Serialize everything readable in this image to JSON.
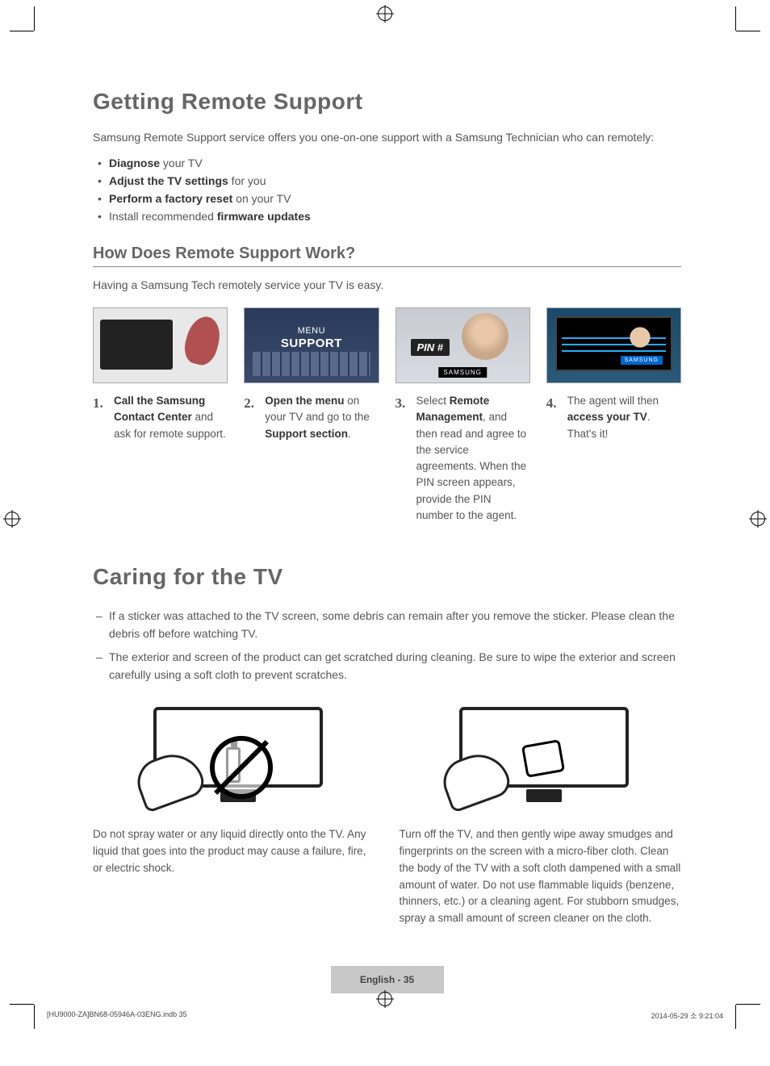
{
  "title1": "Getting Remote Support",
  "intro": "Samsung Remote Support service offers you one-on-one support with a Samsung Technician who can remotely:",
  "bullets": {
    "b1_bold": "Diagnose",
    "b1_rest": " your TV",
    "b2_bold": "Adjust the TV settings",
    "b2_rest": " for you",
    "b3_bold": "Perform a factory reset",
    "b3_rest": " on your TV",
    "b4_pre": "Install recommended ",
    "b4_bold": "firmware updates"
  },
  "subtitle": "How Does Remote Support Work?",
  "subintro": "Having a Samsung Tech remotely service your TV is easy.",
  "step2img": {
    "line1": "MENU",
    "line2": "SUPPORT"
  },
  "step3img": {
    "pin": "PIN #",
    "tag": "SAMSUNG"
  },
  "step4img": {
    "tag": "SAMSUNG"
  },
  "steps": {
    "n1": "1",
    "s1_bold": "Call the Samsung Contact Center",
    "s1_rest": " and ask for remote support.",
    "n2": "2",
    "s2_bold1": "Open the menu",
    "s2_mid": " on your TV and go to the ",
    "s2_bold2": "Support section",
    "s2_end": ".",
    "n3": "3",
    "s3_pre": "Select ",
    "s3_bold": "Remote Management",
    "s3_rest": ", and then read and agree to the service agreements. When the PIN screen appears, provide the PIN number to the agent.",
    "n4": "4",
    "s4_pre": "The agent will then ",
    "s4_bold": "access your TV",
    "s4_rest": ". That's it!"
  },
  "title2": "Caring for the TV",
  "care_bullets": {
    "c1": "If a sticker was attached to the TV screen, some debris can remain after you remove the sticker. Please clean the debris off before watching TV.",
    "c2": "The exterior and screen of the product can get scratched during cleaning. Be sure to wipe the exterior and screen carefully using a soft cloth to prevent scratches."
  },
  "care_left": "Do not spray water or any liquid directly onto the TV. Any liquid that goes into the product may cause a failure, fire, or electric shock.",
  "care_right": "Turn off the TV, and then gently wipe away smudges and fingerprints on the screen with a micro-fiber cloth. Clean the body of the TV with a soft cloth dampened with a small amount of water. Do not use flammable liquids (benzene, thinners, etc.) or a cleaning agent. For stubborn smudges, spray a small amount of screen cleaner on the cloth.",
  "page_label": "English - 35",
  "footer_left": "[HU9000-ZA]BN68-05946A-03ENG.indb   35",
  "footer_right": "2014-05-29   소 9:21:04",
  "colors": {
    "heading": "#666666",
    "body": "#555555",
    "bold": "#333333",
    "footer_bg": "#c8c8c8"
  }
}
